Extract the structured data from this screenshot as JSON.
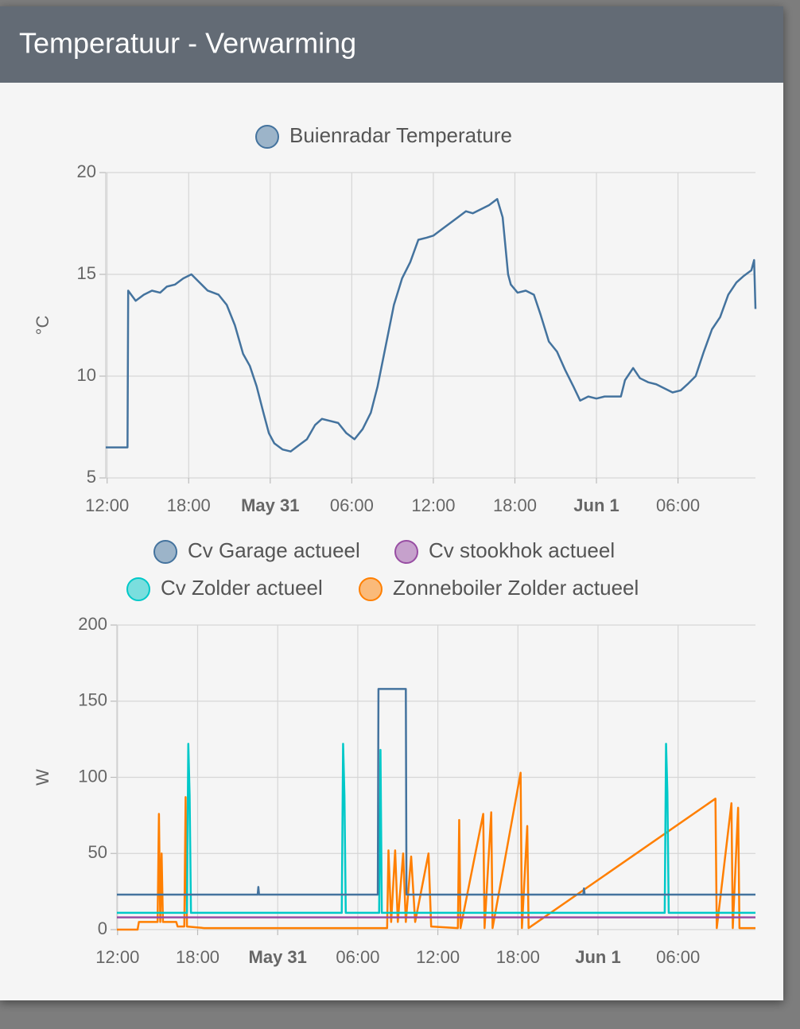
{
  "header": {
    "title": "Temperatuur - Verwarming"
  },
  "chart_data": [
    {
      "type": "line",
      "y_label": "°C",
      "grid": true,
      "xlim": [
        -0.1,
        47.7
      ],
      "ylim": [
        5,
        20
      ],
      "yticks": [
        5,
        10,
        15,
        20
      ],
      "xticks": [
        {
          "value": 0,
          "label": "12:00"
        },
        {
          "value": 6,
          "label": "18:00"
        },
        {
          "value": 12,
          "label": "May 31"
        },
        {
          "value": 18,
          "label": "06:00"
        },
        {
          "value": 24,
          "label": "12:00"
        },
        {
          "value": 30,
          "label": "18:00"
        },
        {
          "value": 36,
          "label": "Jun 1"
        },
        {
          "value": 42,
          "label": "06:00"
        }
      ],
      "series": [
        {
          "name": "Buienradar Temperature",
          "color": "#44739e",
          "x": [
            -0.1,
            1.5,
            1.55,
            2.1,
            2.7,
            3.3,
            3.9,
            4.4,
            5.0,
            5.6,
            6.2,
            6.8,
            7.4,
            8.2,
            8.8,
            9.4,
            10.0,
            10.5,
            11.0,
            11.5,
            11.9,
            12.3,
            12.9,
            13.5,
            14.1,
            14.7,
            15.3,
            15.8,
            16.4,
            17.0,
            17.6,
            18.2,
            18.8,
            19.4,
            19.9,
            20.5,
            21.1,
            21.7,
            22.3,
            22.9,
            23.5,
            24.0,
            24.6,
            25.2,
            25.8,
            26.4,
            26.9,
            27.5,
            28.1,
            28.7,
            29.1,
            29.5,
            29.7,
            30.2,
            30.8,
            31.4,
            31.9,
            32.5,
            33.1,
            33.7,
            34.3,
            34.8,
            35.4,
            36.0,
            36.6,
            37.2,
            37.8,
            38.1,
            38.7,
            39.2,
            39.8,
            40.4,
            41.0,
            41.6,
            42.2,
            42.7,
            43.3,
            43.9,
            44.5,
            45.1,
            45.7,
            46.3,
            46.8,
            47.4,
            47.6,
            47.7
          ],
          "values": [
            6.5,
            6.5,
            14.2,
            13.7,
            14.0,
            14.2,
            14.1,
            14.4,
            14.5,
            14.8,
            15.0,
            14.6,
            14.2,
            14.0,
            13.5,
            12.5,
            11.1,
            10.5,
            9.5,
            8.2,
            7.2,
            6.7,
            6.4,
            6.3,
            6.6,
            6.9,
            7.6,
            7.9,
            7.8,
            7.7,
            7.2,
            6.9,
            7.4,
            8.2,
            9.5,
            11.5,
            13.5,
            14.8,
            15.6,
            16.7,
            16.8,
            16.9,
            17.2,
            17.5,
            17.8,
            18.1,
            18.0,
            18.2,
            18.4,
            18.7,
            17.8,
            15.0,
            14.5,
            14.1,
            14.2,
            14.0,
            13.0,
            11.7,
            11.2,
            10.3,
            9.5,
            8.8,
            9.0,
            8.9,
            9.0,
            9.0,
            9.0,
            9.8,
            10.4,
            9.9,
            9.7,
            9.6,
            9.4,
            9.2,
            9.3,
            9.6,
            10.0,
            11.2,
            12.3,
            12.9,
            14.0,
            14.6,
            14.9,
            15.2,
            15.7,
            13.3
          ]
        }
      ]
    },
    {
      "type": "line",
      "y_label": "W",
      "grid": true,
      "xlim": [
        -0.05,
        47.8
      ],
      "ylim": [
        0,
        200
      ],
      "yticks": [
        0,
        50,
        100,
        150,
        200
      ],
      "xticks": [
        {
          "value": 0,
          "label": "12:00"
        },
        {
          "value": 6,
          "label": "18:00"
        },
        {
          "value": 12,
          "label": "May 31"
        },
        {
          "value": 18,
          "label": "06:00"
        },
        {
          "value": 24,
          "label": "12:00"
        },
        {
          "value": 30,
          "label": "18:00"
        },
        {
          "value": 36,
          "label": "Jun 1"
        },
        {
          "value": 42,
          "label": "06:00"
        }
      ],
      "series": [
        {
          "name": "Cv Garage actueel",
          "color": "#44739e",
          "x": [
            -0.05,
            10.5,
            10.55,
            10.6,
            19.5,
            19.55,
            21.6,
            21.65,
            34.9,
            34.95,
            35.0,
            47.8
          ],
          "values": [
            23,
            23,
            28,
            23,
            23,
            158,
            158,
            23,
            23,
            27,
            23,
            23
          ]
        },
        {
          "name": "Cv stookhok actueel",
          "color": "#984ea3",
          "x": [
            -0.05,
            47.8
          ],
          "values": [
            8,
            8
          ]
        },
        {
          "name": "Cv Zolder actueel",
          "color": "#00c8c8",
          "x": [
            -0.05,
            5.2,
            5.3,
            5.4,
            5.5,
            16.8,
            16.9,
            17.0,
            17.1,
            19.6,
            19.7,
            19.8,
            41.0,
            41.1,
            41.2,
            41.3,
            47.8
          ],
          "values": [
            11,
            11,
            122,
            88,
            11,
            11,
            122,
            88,
            11,
            11,
            118,
            11,
            11,
            122,
            90,
            11,
            11
          ]
        },
        {
          "name": "Zonneboiler Zolder actueel",
          "color": "#ff7f00",
          "x": [
            -0.05,
            1.5,
            1.6,
            3.0,
            3.1,
            3.2,
            3.3,
            3.4,
            4.4,
            4.5,
            5.0,
            5.1,
            5.2,
            6.5,
            20.2,
            20.3,
            20.5,
            20.8,
            21.0,
            21.4,
            21.6,
            22.0,
            22.3,
            23.3,
            23.5,
            25.5,
            25.6,
            25.7,
            27.4,
            27.5,
            28.0,
            28.1,
            30.2,
            30.3,
            30.7,
            30.8,
            44.8,
            44.9,
            46.0,
            46.1,
            46.5,
            46.6,
            47.8
          ],
          "values": [
            0,
            0,
            5,
            5,
            76,
            5,
            50,
            5,
            5,
            2,
            2,
            87,
            2,
            1,
            1,
            52,
            5,
            52,
            5,
            50,
            5,
            48,
            5,
            50,
            2,
            1,
            72,
            1,
            76,
            1,
            77,
            1,
            103,
            1,
            68,
            1,
            86,
            1,
            83,
            1,
            80,
            1,
            1
          ]
        }
      ]
    }
  ]
}
